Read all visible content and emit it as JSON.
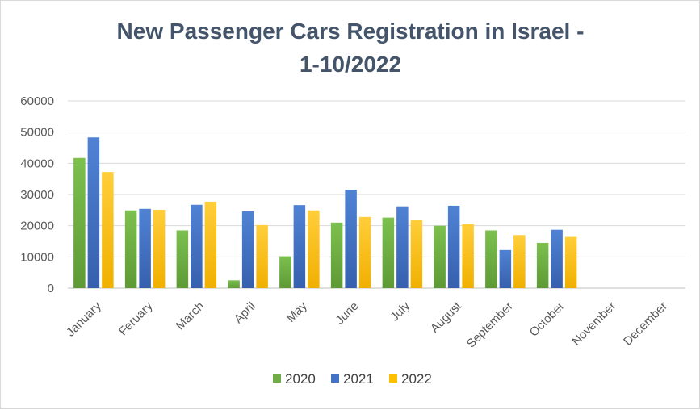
{
  "chart_data": {
    "type": "bar",
    "title_lines": [
      "New Passenger Cars Registration in Israel -",
      "1-10/2022"
    ],
    "categories": [
      "January",
      "Feruary",
      "March",
      "April",
      "May",
      "June",
      "July",
      "August",
      "September",
      "October",
      "November",
      "December"
    ],
    "series": [
      {
        "name": "2020",
        "color": "#70ad47",
        "values": [
          41700,
          24900,
          18500,
          2500,
          10200,
          21000,
          22600,
          20000,
          18500,
          14500,
          null,
          null
        ]
      },
      {
        "name": "2021",
        "color": "#4472c4",
        "values": [
          48300,
          25400,
          26700,
          24600,
          26600,
          31500,
          26200,
          26400,
          12200,
          18700,
          null,
          null
        ]
      },
      {
        "name": "2022",
        "color": "#ffc000",
        "values": [
          37200,
          25100,
          27700,
          20200,
          24900,
          22800,
          21900,
          20500,
          17000,
          16400,
          null,
          null
        ]
      }
    ],
    "ylim": [
      0,
      60000
    ],
    "yticks": [
      "0",
      "10000",
      "20000",
      "30000",
      "40000",
      "50000",
      "60000"
    ],
    "grid": true,
    "legend_position": "bottom"
  }
}
